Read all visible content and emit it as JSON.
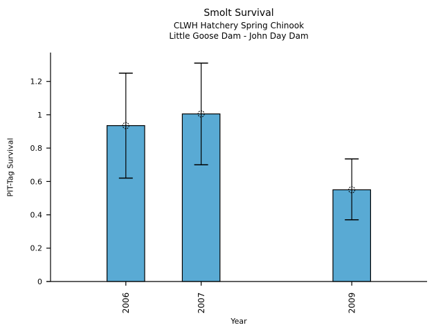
{
  "chart_data": {
    "type": "bar",
    "title": "Smolt Survival",
    "subtitle1": "CLWH Hatchery Spring Chinook",
    "subtitle2": "Little Goose Dam - John Day Dam",
    "xlabel": "Year",
    "ylabel": "PIT-Tag Survival",
    "categories": [
      "2006",
      "2007",
      "2009"
    ],
    "x": [
      2006,
      2007,
      2009
    ],
    "values": [
      0.935,
      1.005,
      0.55
    ],
    "error_low": [
      0.62,
      0.7,
      0.37
    ],
    "error_high": [
      1.25,
      1.31,
      0.735
    ],
    "bar_width_x": 0.5,
    "xlim": [
      2005,
      2010
    ],
    "ylim": [
      0,
      1.373
    ],
    "yticks": {
      "values": [
        0,
        0.2,
        0.4,
        0.6,
        0.8,
        1,
        1.2
      ],
      "labels": [
        "0",
        "0.2",
        "0.4",
        "0.6",
        "0.8",
        "1",
        "1.2"
      ]
    },
    "grid": false,
    "legend": "none",
    "marker": "open-circle",
    "colors": {
      "bar_fill": "#59AAD4",
      "bar_edge": "#000000",
      "error_bar": "#000000",
      "axis": "#000000",
      "text": "#000000",
      "background": "#FFFFFF"
    }
  }
}
